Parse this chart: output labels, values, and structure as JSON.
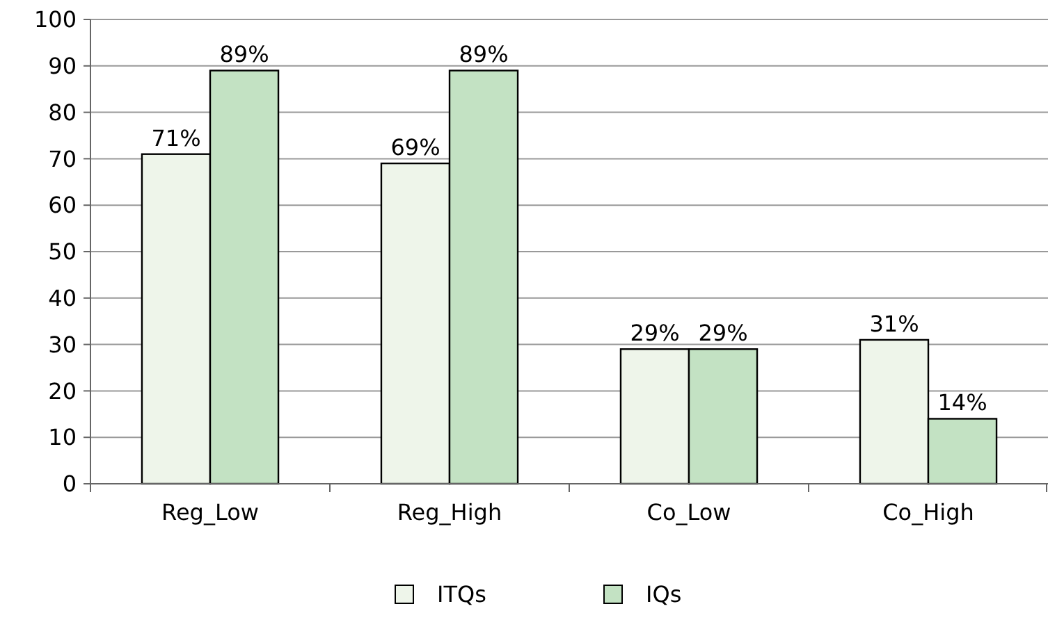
{
  "chart_data": {
    "type": "bar",
    "categories": [
      "Reg_Low",
      "Reg_High",
      "Co_Low",
      "Co_High"
    ],
    "series": [
      {
        "name": "ITQs",
        "color": "#eef5ea",
        "values": [
          71,
          69,
          29,
          31
        ],
        "value_labels": [
          "71%",
          "69%",
          "29%",
          "31%"
        ]
      },
      {
        "name": "IQs",
        "color": "#c3e2c3",
        "values": [
          89,
          89,
          29,
          14
        ],
        "value_labels": [
          "89%",
          "89%",
          "29%",
          "14%"
        ]
      }
    ],
    "ylim": [
      0,
      100
    ],
    "yticks": [
      0,
      10,
      20,
      30,
      40,
      50,
      60,
      70,
      80,
      90,
      100
    ],
    "grid": "y",
    "legend": "bottom"
  }
}
